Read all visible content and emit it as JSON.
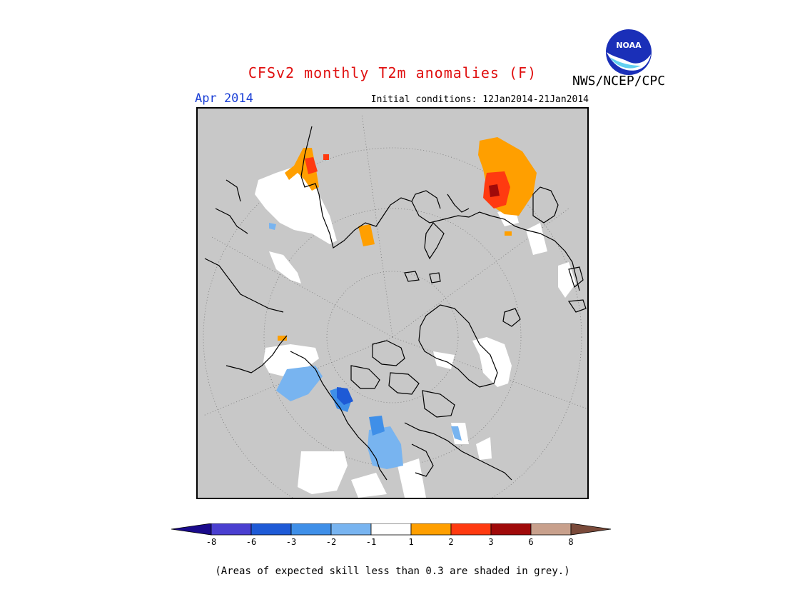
{
  "title": "CFSv2 monthly T2m anomalies (F)",
  "month": "Apr 2014",
  "initial_conditions": "Initial conditions: 12Jan2014-21Jan2014",
  "agency": "NWS/NCEP/CPC",
  "logo": {
    "text": "NOAA",
    "icon": "noaa-logo"
  },
  "legend": {
    "tick_labels": [
      "-8",
      "-6",
      "-3",
      "-2",
      "-1",
      "1",
      "2",
      "3",
      "6",
      "8"
    ],
    "colors": [
      "#1a0a8c",
      "#4a3fd0",
      "#1e5ad6",
      "#3f8fe8",
      "#78b4f0",
      "#ffffff",
      "#ff9f00",
      "#ff3a10",
      "#a00a0a",
      "#c8a08c",
      "#7a4a3a"
    ]
  },
  "footnote": "(Areas of expected skill less than 0.3 are shaded in grey.)",
  "map": {
    "projection": "north polar stereographic",
    "skill_mask_color": "#c8c8c8",
    "coastline_color": "#000000"
  }
}
